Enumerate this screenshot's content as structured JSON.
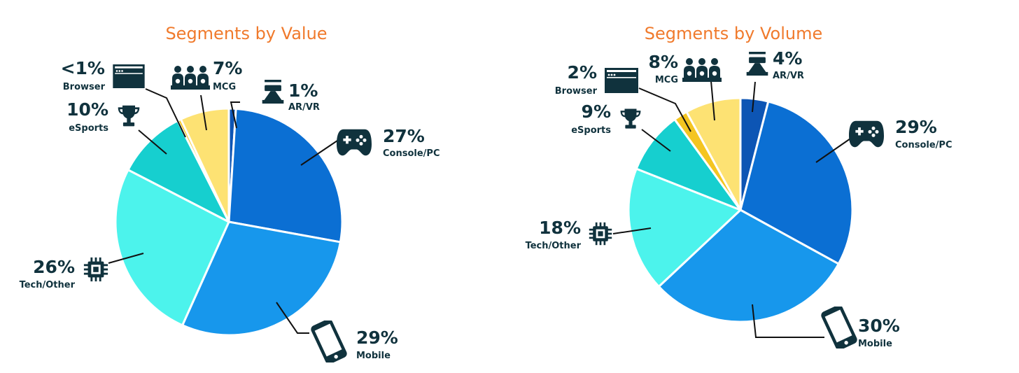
{
  "colors": {
    "title": "#f07a2c",
    "label": "#10323d",
    "AR/VR": "#0d55b4",
    "Console/PC": "#0b6fd3",
    "Mobile": "#1797ec",
    "Tech/Other": "#4cf3ec",
    "eSports": "#16cfcf",
    "Browser": "#f4c521",
    "MCG": "#fde273"
  },
  "chart_data": [
    {
      "type": "pie",
      "title": "Segments by Value",
      "unit": "%",
      "slices": [
        {
          "label": "AR/VR",
          "value": 1,
          "display": "1%",
          "icon": "vr-headset-icon"
        },
        {
          "label": "Console/PC",
          "value": 27,
          "display": "27%",
          "icon": "gamepad-icon"
        },
        {
          "label": "Mobile",
          "value": 29,
          "display": "29%",
          "icon": "smartphone-icon"
        },
        {
          "label": "Tech/Other",
          "value": 26,
          "display": "26%",
          "icon": "chip-icon"
        },
        {
          "label": "eSports",
          "value": 10,
          "display": "10%",
          "icon": "trophy-icon"
        },
        {
          "label": "Browser",
          "value": 0.5,
          "display": "<1%",
          "icon": "browser-window-icon"
        },
        {
          "label": "MCG",
          "value": 7,
          "display": "7%",
          "icon": "group-people-icon"
        }
      ]
    },
    {
      "type": "pie",
      "title": "Segments by Volume",
      "unit": "%",
      "slices": [
        {
          "label": "AR/VR",
          "value": 4,
          "display": "4%",
          "icon": "vr-headset-icon"
        },
        {
          "label": "Console/PC",
          "value": 29,
          "display": "29%",
          "icon": "gamepad-icon"
        },
        {
          "label": "Mobile",
          "value": 30,
          "display": "30%",
          "icon": "smartphone-icon"
        },
        {
          "label": "Tech/Other",
          "value": 18,
          "display": "18%",
          "icon": "chip-icon"
        },
        {
          "label": "eSports",
          "value": 9,
          "display": "9%",
          "icon": "trophy-icon"
        },
        {
          "label": "Browser",
          "value": 2,
          "display": "2%",
          "icon": "browser-window-icon"
        },
        {
          "label": "MCG",
          "value": 8,
          "display": "8%",
          "icon": "group-people-icon"
        }
      ]
    }
  ]
}
